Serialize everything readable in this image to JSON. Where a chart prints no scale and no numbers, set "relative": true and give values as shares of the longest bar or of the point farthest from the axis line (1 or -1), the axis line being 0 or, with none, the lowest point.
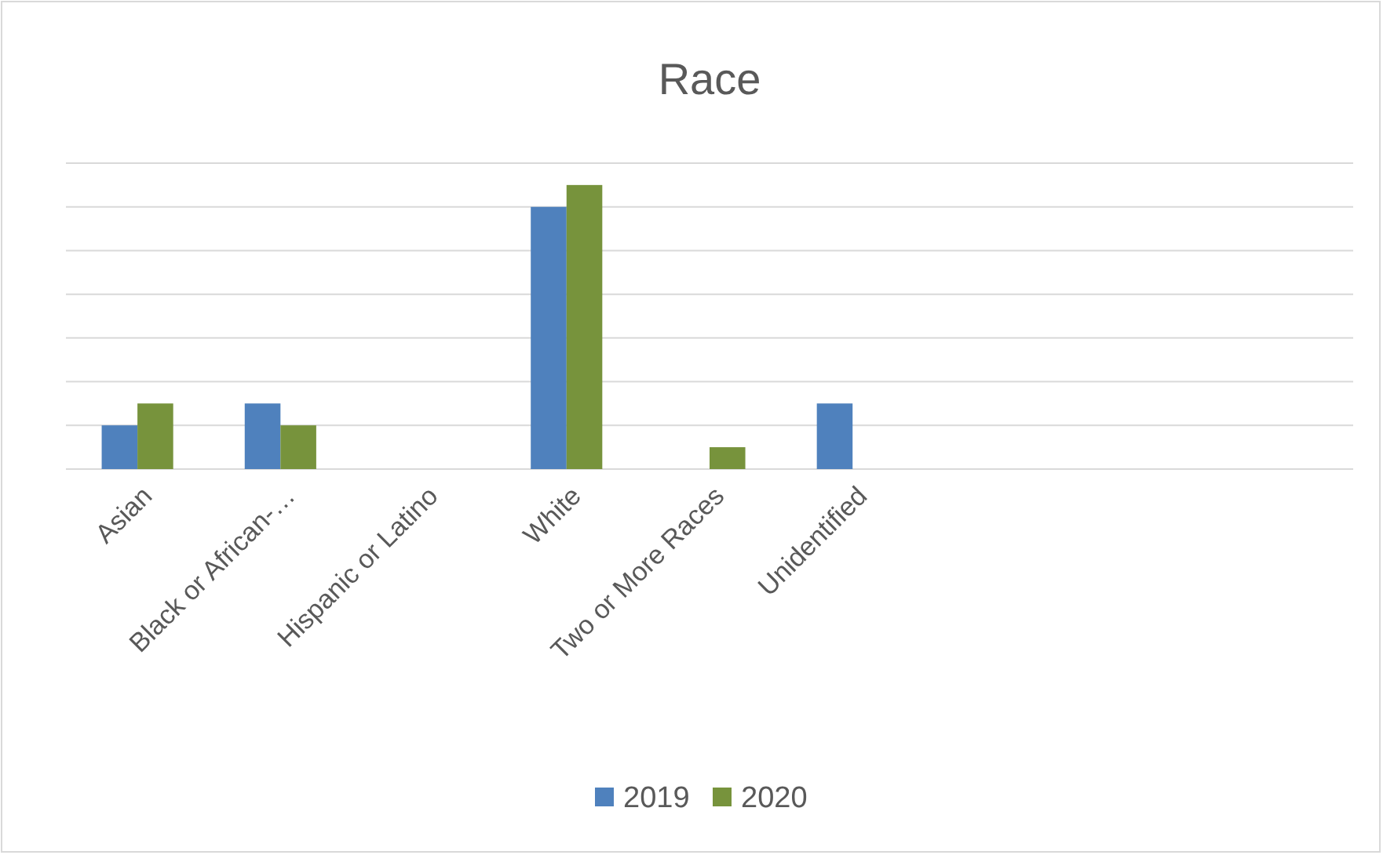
{
  "chart_data": {
    "type": "bar",
    "title": "Race",
    "relative": true,
    "grid": true,
    "legend": "bottom",
    "categories": [
      "Asian",
      "Black or African-…",
      "Hispanic or Latino",
      "White",
      "Two or More Races",
      "Unidentified",
      null,
      null,
      null
    ],
    "series": [
      {
        "name": "2019",
        "color": "#4f81bd",
        "values": [
          0.154,
          0.231,
          0,
          0.923,
          0,
          0.231,
          null,
          null,
          null
        ]
      },
      {
        "name": "2020",
        "color": "#77933c",
        "values": [
          0.231,
          0.154,
          0,
          1,
          0.077,
          0,
          null,
          null,
          null
        ]
      }
    ]
  }
}
